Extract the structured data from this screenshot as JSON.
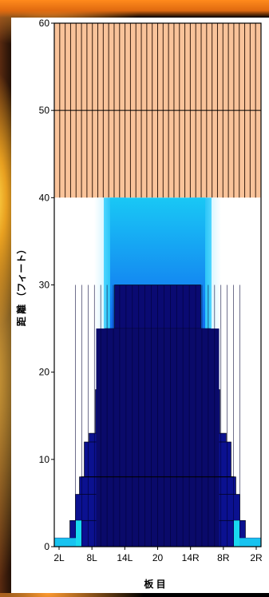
{
  "chart_data": {
    "type": "heatmap",
    "title": "",
    "xlabel": "板 目",
    "ylabel": "距 離 （フィート）",
    "ylim": [
      0,
      60
    ],
    "y_ticks": [
      "0",
      "10",
      "20",
      "30",
      "40",
      "50",
      "60"
    ],
    "x_ticks": [
      "2L",
      "8L",
      "14L",
      "20",
      "14R",
      "8R",
      "2R"
    ],
    "grid": false,
    "colors": {
      "far_zone_fill": "#f9c39a",
      "far_zone_line": "#3a1f10",
      "light_cyan": "#dff8ff",
      "cyan": "#17c3f0",
      "blue": "#1a37ff",
      "dark_navy": "#0a0a6a"
    }
  }
}
